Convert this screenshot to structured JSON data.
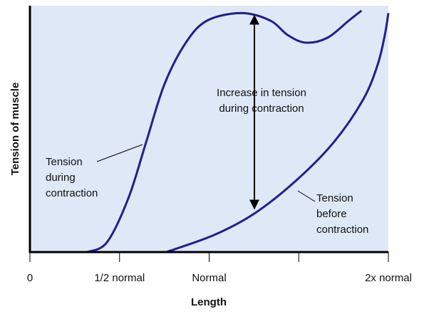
{
  "chart_data": {
    "type": "line",
    "x_label": "Length",
    "y_label": "Tension of muscle",
    "xlim": [
      0,
      2
    ],
    "ylim": [
      0,
      100
    ],
    "xticks": [
      {
        "value": 0,
        "label": "0"
      },
      {
        "value": 0.5,
        "label": "1/2 normal"
      },
      {
        "value": 1,
        "label": "Normal"
      },
      {
        "value": 1.5,
        "label": null
      },
      {
        "value": 2,
        "label": "2x normal"
      }
    ],
    "background": "#dfe8f6",
    "series": [
      {
        "color": "#1f1f8f",
        "x": [
          0.32,
          0.43,
          0.55,
          0.65,
          0.75,
          0.87,
          0.99,
          1.18,
          1.34,
          1.44,
          1.54,
          1.66,
          1.78,
          1.85
        ],
        "values": [
          0,
          4,
          22,
          45,
          68,
          85,
          94,
          97,
          94,
          88,
          85,
          87,
          94,
          98
        ]
      },
      {
        "color": "#1f1f8f",
        "x": [
          0.76,
          1.03,
          1.26,
          1.5,
          1.7,
          1.86,
          1.94,
          1.98,
          2.0
        ],
        "values": [
          0,
          7,
          16,
          30,
          45,
          62,
          76,
          88,
          97
        ]
      }
    ],
    "annotations": [
      {
        "lines": [
          "Increase in tension",
          "during contraction"
        ]
      },
      {
        "lines": [
          "Tension",
          "during",
          "contraction"
        ]
      },
      {
        "lines": [
          "Tension",
          "before",
          "contraction"
        ]
      }
    ]
  }
}
